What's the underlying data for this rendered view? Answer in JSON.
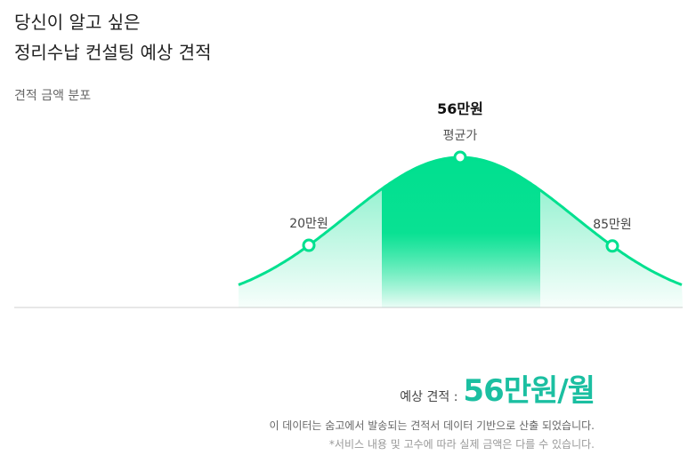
{
  "header": {
    "title_line1": "당신이 알고 싶은",
    "title_line2": "정리수납 컨설팅 예상 견적"
  },
  "colors": {
    "accent": "#00e08f",
    "accent_text": "#1bbfa1"
  },
  "chart_data": {
    "type": "area",
    "title": "견적 금액 분포",
    "xlabel": "",
    "ylabel": "",
    "unit": "만원",
    "grid": false,
    "legend": "none",
    "points": [
      {
        "value": 20,
        "label": "20만원"
      },
      {
        "value": 56,
        "label": "56만원",
        "sublabel": "평균가"
      },
      {
        "value": 85,
        "label": "85만원"
      }
    ]
  },
  "estimate": {
    "label": "예상 견적 :",
    "value": "56만원/월"
  },
  "footnote": {
    "line1": "이 데이터는 숨고에서 발송되는 견적서 데이터 기반으로 산출 되었습니다.",
    "line2": "*서비스 내용 및 고수에 따라 실제 금액은 다를 수 있습니다."
  }
}
